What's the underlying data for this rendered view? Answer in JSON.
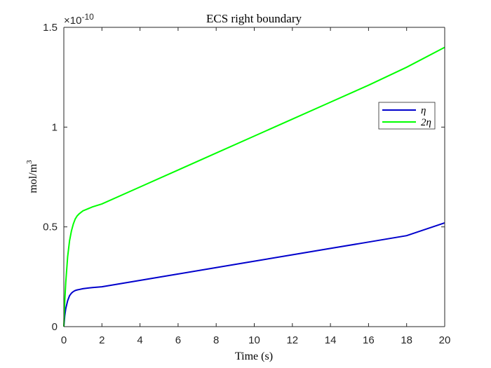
{
  "chart_data": {
    "type": "line",
    "title": "ECS right boundary",
    "xlabel": "Time (s)",
    "ylabel": {
      "base": "mol/m",
      "superscript": "3"
    },
    "y_exponent": {
      "prefix": "×10",
      "power": "-10"
    },
    "xlim": [
      0,
      20
    ],
    "ylim": [
      0,
      1.5
    ],
    "x_ticks": [
      "0",
      "2",
      "4",
      "6",
      "8",
      "10",
      "12",
      "14",
      "16",
      "18",
      "20"
    ],
    "y_ticks": [
      "0",
      "0.5",
      "1",
      "1.5"
    ],
    "grid": false,
    "legend_position": "top-right",
    "series": [
      {
        "name": "η",
        "color": "#0000cc",
        "x": [
          0,
          0.05,
          0.1,
          0.2,
          0.3,
          0.4,
          0.5,
          0.6,
          0.7,
          0.8,
          1.0,
          1.5,
          2,
          4,
          6,
          8,
          10,
          12,
          14,
          16,
          18,
          20
        ],
        "y": [
          0.0,
          0.055,
          0.09,
          0.13,
          0.155,
          0.168,
          0.176,
          0.181,
          0.184,
          0.186,
          0.19,
          0.196,
          0.2,
          0.232,
          0.264,
          0.296,
          0.328,
          0.36,
          0.392,
          0.424,
          0.456,
          0.52
        ]
      },
      {
        "name": "2η",
        "color": "#00ff00",
        "x": [
          0,
          0.05,
          0.1,
          0.2,
          0.3,
          0.4,
          0.5,
          0.6,
          0.7,
          0.8,
          1.0,
          1.5,
          2,
          4,
          6,
          8,
          10,
          12,
          14,
          16,
          18,
          20
        ],
        "y": [
          0.0,
          0.13,
          0.22,
          0.35,
          0.43,
          0.48,
          0.515,
          0.54,
          0.555,
          0.565,
          0.58,
          0.6,
          0.615,
          0.7,
          0.785,
          0.87,
          0.955,
          1.04,
          1.125,
          1.21,
          1.3,
          1.4
        ]
      }
    ]
  }
}
